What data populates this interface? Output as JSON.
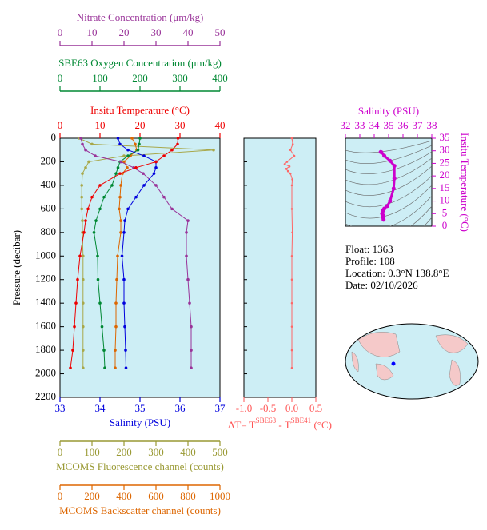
{
  "chart_data": [
    {
      "type": "profile",
      "y_label": "Pressure (decibar)",
      "ylim": [
        2200,
        0
      ],
      "yticks": [
        0,
        200,
        400,
        600,
        800,
        1000,
        1200,
        1400,
        1600,
        1800,
        2000,
        2200
      ],
      "axes": [
        {
          "label": "Nitrate Concentration (μm/kg)",
          "lim": [
            0,
            50
          ],
          "ticks": [
            0,
            10,
            20,
            30,
            40,
            50
          ],
          "color": "#993399",
          "side": "top"
        },
        {
          "label": "SBE63 Oxygen Concentration (μm/kg)",
          "lim": [
            0,
            400
          ],
          "ticks": [
            0,
            100,
            200,
            300,
            400
          ],
          "color": "#008833",
          "side": "top"
        },
        {
          "label": "Insitu Temperature (°C)",
          "lim": [
            0,
            40
          ],
          "ticks": [
            0,
            10,
            20,
            30,
            40
          ],
          "color": "#ee0000",
          "side": "top"
        },
        {
          "label": "Salinity (PSU)",
          "lim": [
            33,
            37
          ],
          "ticks": [
            33,
            34,
            35,
            36,
            37
          ],
          "color": "#0000dd",
          "side": "bottom"
        },
        {
          "label": "MCOMS Fluorescence channel (counts)",
          "lim": [
            0,
            500
          ],
          "ticks": [
            0,
            100,
            200,
            300,
            400,
            500
          ],
          "color": "#999933",
          "side": "bottom"
        },
        {
          "label": "MCOMS Backscatter channel (counts)",
          "lim": [
            0,
            1000
          ],
          "ticks": [
            0,
            200,
            400,
            600,
            800,
            1000
          ],
          "color": "#dd6600",
          "side": "bottom"
        }
      ],
      "series": [
        {
          "axis": 4,
          "color": "#a8a84a",
          "y": [
            0,
            50,
            100,
            150,
            200,
            250,
            300,
            400,
            500,
            600,
            700,
            800,
            1000,
            1200,
            1400,
            1600,
            1800,
            1950
          ],
          "values": [
            60,
            100,
            480,
            200,
            90,
            80,
            70,
            68,
            68,
            68,
            70,
            70,
            72,
            72,
            72,
            72,
            72,
            72
          ]
        },
        {
          "axis": 5,
          "color": "#dd6600",
          "y": [
            0,
            50,
            100,
            150,
            200,
            250,
            300,
            400,
            500,
            600,
            700,
            800,
            1000,
            1200,
            1400,
            1600,
            1800,
            1950
          ],
          "values": [
            450,
            470,
            480,
            440,
            400,
            420,
            390,
            380,
            375,
            370,
            380,
            380,
            360,
            355,
            350,
            350,
            345,
            345
          ]
        },
        {
          "axis": 1,
          "color": "#008833",
          "y": [
            0,
            50,
            100,
            150,
            200,
            250,
            300,
            400,
            500,
            600,
            700,
            800,
            1000,
            1200,
            1400,
            1600,
            1800,
            1950
          ],
          "values": [
            200,
            198,
            195,
            170,
            150,
            145,
            140,
            130,
            110,
            100,
            90,
            85,
            94,
            95,
            100,
            105,
            110,
            112
          ]
        },
        {
          "axis": 0,
          "color": "#993399",
          "y": [
            0,
            50,
            100,
            150,
            200,
            250,
            300,
            400,
            500,
            600,
            700,
            800,
            1000,
            1200,
            1400,
            1600,
            1800,
            1950
          ],
          "values": [
            6.5,
            7,
            8,
            11,
            19,
            23,
            26,
            30,
            32.5,
            35,
            40,
            39.5,
            39.5,
            40,
            40.5,
            41,
            41,
            41
          ]
        },
        {
          "axis": 3,
          "color": "#0000dd",
          "y": [
            0,
            50,
            100,
            150,
            200,
            250,
            300,
            400,
            500,
            600,
            700,
            800,
            1000,
            1200,
            1400,
            1600,
            1800,
            1950
          ],
          "values": [
            34.45,
            34.5,
            34.7,
            35.1,
            35.4,
            35.4,
            35.35,
            35.1,
            34.9,
            34.7,
            34.62,
            34.6,
            34.55,
            34.6,
            34.6,
            34.62,
            34.64,
            34.65
          ]
        },
        {
          "axis": 2,
          "color": "#ee0000",
          "y": [
            0,
            50,
            100,
            150,
            200,
            250,
            300,
            400,
            500,
            600,
            700,
            800,
            1000,
            1200,
            1400,
            1600,
            1800,
            1950
          ],
          "values": [
            29.5,
            29.4,
            28,
            26,
            24,
            19,
            15,
            10,
            8,
            7,
            6.4,
            6,
            5,
            4.4,
            4,
            3.6,
            3.2,
            2.6
          ]
        }
      ]
    },
    {
      "type": "delta",
      "x_label_parts": [
        "ΔT= T",
        "SBE63",
        " - T",
        "SBE41",
        " (°C)"
      ],
      "color": "#ff5555",
      "xlim": [
        -1.0,
        0.5
      ],
      "xticks": [
        {
          "value": -1.0,
          "label": "-1.0"
        },
        {
          "value": -0.5,
          "label": "-0.5"
        },
        {
          "value": 0,
          "label": "0.0"
        },
        0.5
      ],
      "ylim": [
        2200,
        0
      ],
      "yticks": [
        0,
        200,
        400,
        600,
        800,
        1000,
        1200,
        1400,
        1600,
        1800,
        2000,
        2200
      ],
      "series": [
        {
          "color": "#ff6666",
          "y": [
            0,
            50,
            100,
            150,
            200,
            220,
            240,
            260,
            280,
            300,
            350,
            400,
            600,
            800,
            1000,
            1200,
            1400,
            1600,
            1800,
            1950
          ],
          "values": [
            0,
            0.02,
            -0.03,
            0.05,
            -0.1,
            -0.15,
            -0.05,
            -0.12,
            -0.08,
            -0.03,
            0.01,
            0,
            0,
            0.01,
            0,
            0,
            0,
            0,
            0,
            0
          ]
        }
      ]
    },
    {
      "type": "ts",
      "x_label": "Salinity (PSU)",
      "y_label": "Insitu Temperature (°C)",
      "color": "#cc00cc",
      "xlim": [
        32,
        38
      ],
      "xticks": [
        32,
        33,
        34,
        35,
        36,
        37,
        38
      ],
      "ylim": [
        0,
        35
      ],
      "yticks": [
        0,
        5,
        10,
        15,
        20,
        25,
        30,
        35
      ],
      "x": [
        34.45,
        34.5,
        34.7,
        35.1,
        35.4,
        35.4,
        35.35,
        35.1,
        34.9,
        34.7,
        34.62,
        34.6,
        34.55,
        34.6,
        34.6,
        34.62,
        34.64,
        34.65
      ],
      "values": [
        29.5,
        29.4,
        28,
        26,
        24,
        19,
        15,
        10,
        8,
        7,
        6.4,
        6,
        5,
        4.4,
        4,
        3.6,
        3.2,
        2.6
      ]
    }
  ],
  "float_info": {
    "float": "Float:  1363",
    "profile": "Profile:  108",
    "location": "Location:  0.3°N  138.8°E",
    "date": "Date:  02/10/2026"
  }
}
